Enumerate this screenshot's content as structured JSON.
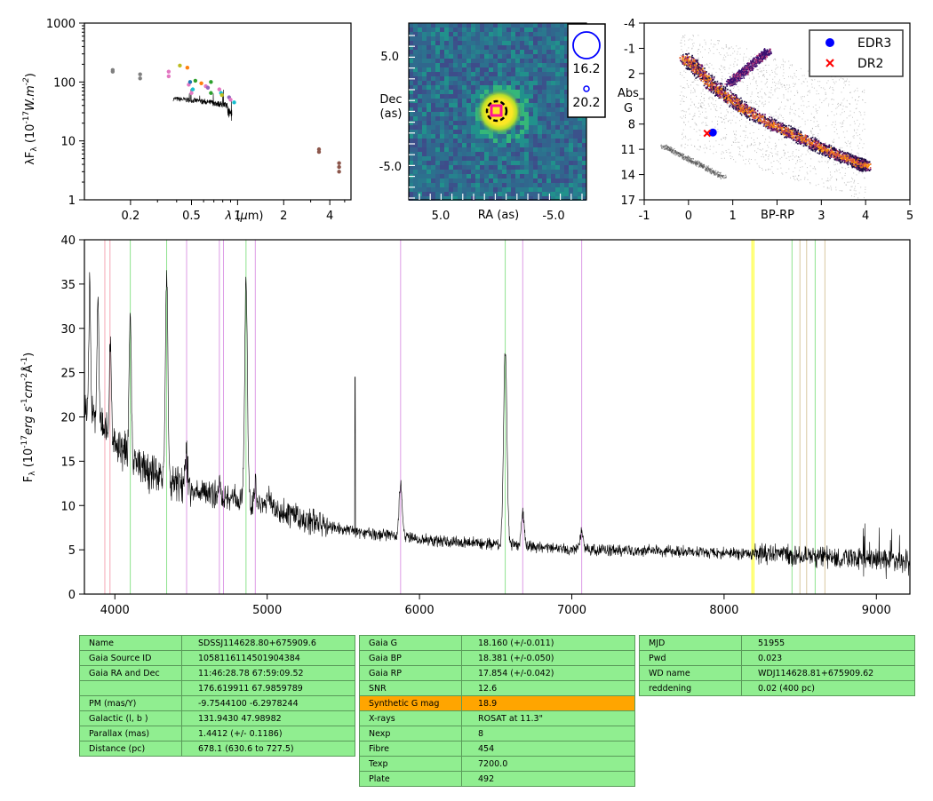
{
  "colors": {
    "spectrum": "#000000",
    "table_bg": "#90ee90",
    "highlight": "#ffa500",
    "edr3": "#0000ff",
    "dr2": "#ff0000"
  },
  "chart_data": [
    {
      "type": "scatter",
      "id": "sed",
      "ylabel": "λF_λ (10^-17 W.m^-2)",
      "xlabel": "λ (μm)",
      "xscale": "log",
      "yscale": "log",
      "xlim": [
        0.1,
        5.5
      ],
      "ylim": [
        1,
        1000
      ],
      "xticks": [
        "0.2",
        "0.5",
        "1",
        "2",
        "4"
      ],
      "yticks": [
        "1",
        "10",
        "100",
        "1000"
      ],
      "points": [
        {
          "x": 0.153,
          "y": 160,
          "c": "#7f7f7f"
        },
        {
          "x": 0.153,
          "y": 150,
          "c": "#7f7f7f"
        },
        {
          "x": 0.231,
          "y": 135,
          "c": "#7f7f7f"
        },
        {
          "x": 0.231,
          "y": 115,
          "c": "#7f7f7f"
        },
        {
          "x": 0.355,
          "y": 150,
          "c": "#e377c2"
        },
        {
          "x": 0.355,
          "y": 125,
          "c": "#e377c2"
        },
        {
          "x": 0.42,
          "y": 190,
          "c": "#bcbd22"
        },
        {
          "x": 0.47,
          "y": 175,
          "c": "#ff7f0e"
        },
        {
          "x": 0.48,
          "y": 90,
          "c": "#e377c2"
        },
        {
          "x": 0.49,
          "y": 100,
          "c": "#1f77b4"
        },
        {
          "x": 0.5,
          "y": 65,
          "c": "#e377c2"
        },
        {
          "x": 0.51,
          "y": 75,
          "c": "#17becf"
        },
        {
          "x": 0.53,
          "y": 105,
          "c": "#2ca02c"
        },
        {
          "x": 0.58,
          "y": 95,
          "c": "#ff7f0e"
        },
        {
          "x": 0.62,
          "y": 85,
          "c": "#e377c2"
        },
        {
          "x": 0.64,
          "y": 80,
          "c": "#9467bd"
        },
        {
          "x": 0.67,
          "y": 65,
          "c": "#2ca02c"
        },
        {
          "x": 0.67,
          "y": 100,
          "c": "#2ca02c"
        },
        {
          "x": 0.76,
          "y": 75,
          "c": "#e377c2"
        },
        {
          "x": 0.78,
          "y": 65,
          "c": "#17becf"
        },
        {
          "x": 0.79,
          "y": 60,
          "c": "#bcbd22"
        },
        {
          "x": 0.88,
          "y": 55,
          "c": "#9467bd"
        },
        {
          "x": 0.9,
          "y": 50,
          "c": "#e377c2"
        },
        {
          "x": 0.95,
          "y": 45,
          "c": "#17becf"
        },
        {
          "x": 3.4,
          "y": 7.2,
          "c": "#8c564b"
        },
        {
          "x": 3.4,
          "y": 6.5,
          "c": "#8c564b"
        },
        {
          "x": 4.6,
          "y": 4.2,
          "c": "#8c564b"
        },
        {
          "x": 4.6,
          "y": 3.6,
          "c": "#8c564b"
        },
        {
          "x": 4.6,
          "y": 3.0,
          "c": "#8c564b"
        }
      ]
    },
    {
      "type": "heatmap",
      "id": "image",
      "xlabel": "RA (as)",
      "ylabel": "Dec (as)",
      "xticks": [
        "5.0",
        "-5.0"
      ],
      "yticks": [
        "5.0",
        "-5.0"
      ],
      "legend": [
        {
          "label": "16.2"
        },
        {
          "label": "20.2"
        }
      ]
    },
    {
      "type": "scatter",
      "id": "hrd",
      "xlabel": "BP-RP",
      "ylabel": "Abs G",
      "xlim": [
        -1,
        5
      ],
      "ylim": [
        17,
        -4
      ],
      "xticks": [
        "-1",
        "0",
        "1",
        "2",
        "3",
        "4",
        "5"
      ],
      "yticks": [
        "-4",
        "-1",
        "2",
        "5",
        "8",
        "11",
        "14",
        "17"
      ],
      "legend_position": "top-right",
      "series": [
        {
          "name": "EDR3",
          "marker": "circle",
          "color": "#0000ff",
          "points": [
            {
              "x": 0.55,
              "y": 9.0
            }
          ]
        },
        {
          "name": "DR2",
          "marker": "x",
          "color": "#ff0000",
          "points": [
            {
              "x": 0.42,
              "y": 9.1
            }
          ]
        }
      ]
    },
    {
      "type": "line",
      "id": "spectrum",
      "ylabel": "F_λ (10^-17 erg s^-1 cm^-2 Å^-1)",
      "xlim": [
        3800,
        9220
      ],
      "ylim": [
        0,
        40
      ],
      "xticks": [
        "4000",
        "5000",
        "6000",
        "7000",
        "8000",
        "9000"
      ],
      "yticks": [
        "0",
        "5",
        "10",
        "15",
        "20",
        "25",
        "30",
        "35",
        "40"
      ],
      "continuum": [
        [
          3800,
          21
        ],
        [
          3900,
          20
        ],
        [
          4000,
          17
        ],
        [
          4200,
          14
        ],
        [
          4400,
          12.5
        ],
        [
          4600,
          11.5
        ],
        [
          4800,
          10.8
        ],
        [
          5000,
          9.8
        ],
        [
          5200,
          8.6
        ],
        [
          5400,
          7.6
        ],
        [
          5600,
          7
        ],
        [
          5800,
          6.6
        ],
        [
          6000,
          6.2
        ],
        [
          6200,
          5.9
        ],
        [
          6400,
          5.7
        ],
        [
          6600,
          5.6
        ],
        [
          6800,
          5.3
        ],
        [
          7000,
          5.1
        ],
        [
          7200,
          5.0
        ],
        [
          7400,
          4.9
        ],
        [
          7600,
          4.85
        ],
        [
          7800,
          4.8
        ],
        [
          8000,
          4.7
        ],
        [
          8200,
          4.5
        ],
        [
          8400,
          4.5
        ],
        [
          8600,
          4.3
        ],
        [
          8800,
          4.1
        ],
        [
          9000,
          3.9
        ],
        [
          9220,
          3.8
        ]
      ],
      "emission_lines": [
        {
          "center": 3835,
          "peak": 14,
          "sigma": 6
        },
        {
          "center": 3889,
          "peak": 12,
          "sigma": 6
        },
        {
          "center": 3970,
          "peak": 10,
          "sigma": 6
        },
        {
          "center": 4101,
          "peak": 17,
          "sigma": 7
        },
        {
          "center": 4340,
          "peak": 23,
          "sigma": 8
        },
        {
          "center": 4471,
          "peak": 3.5,
          "sigma": 8
        },
        {
          "center": 4686,
          "peak": 2,
          "sigma": 8
        },
        {
          "center": 4861,
          "peak": 25,
          "sigma": 9
        },
        {
          "center": 4922,
          "peak": 2,
          "sigma": 7
        },
        {
          "center": 5015,
          "peak": 2,
          "sigma": 8
        },
        {
          "center": 5876,
          "peak": 6,
          "sigma": 10
        },
        {
          "center": 6563,
          "peak": 22,
          "sigma": 11
        },
        {
          "center": 6678,
          "peak": 3.5,
          "sigma": 9
        },
        {
          "center": 7065,
          "peak": 2,
          "sigma": 10
        }
      ],
      "spikes": [
        {
          "x": 5577,
          "y": 24.5
        }
      ],
      "vlines": [
        {
          "x": 3934,
          "color": "#f4a6b4"
        },
        {
          "x": 3968,
          "color": "#f4a6b4"
        },
        {
          "x": 4101,
          "color": "#8fe38f"
        },
        {
          "x": 4340,
          "color": "#8fe38f"
        },
        {
          "x": 4471,
          "color": "#dd9ce6"
        },
        {
          "x": 4686,
          "color": "#dd9ce6"
        },
        {
          "x": 4713,
          "color": "#dd9ce6"
        },
        {
          "x": 4861,
          "color": "#8fe38f"
        },
        {
          "x": 4922,
          "color": "#dd9ce6"
        },
        {
          "x": 5876,
          "color": "#dd9ce6"
        },
        {
          "x": 6563,
          "color": "#8fe38f"
        },
        {
          "x": 6678,
          "color": "#dd9ce6"
        },
        {
          "x": 7065,
          "color": "#dd9ce6"
        },
        {
          "x": 8183,
          "color": "#ffff00"
        },
        {
          "x": 8195,
          "color": "#ffff00"
        },
        {
          "x": 8446,
          "color": "#8fe38f"
        },
        {
          "x": 8498,
          "color": "#d8c8a0"
        },
        {
          "x": 8542,
          "color": "#d8c8a0"
        },
        {
          "x": 8598,
          "color": "#8fe38f"
        },
        {
          "x": 8662,
          "color": "#d8c8a0"
        }
      ]
    }
  ],
  "table1": [
    [
      "Name",
      "SDSSJ114628.80+675909.6"
    ],
    [
      "Gaia Source ID",
      "1058116114501904384"
    ],
    [
      "Gaia RA and Dec",
      "11:46:28.78    67:59:09.52"
    ],
    [
      "",
      "176.619911    67.9859789"
    ],
    [
      "PM (mas/Y)",
      "-9.7544100    -6.2978244"
    ],
    [
      "Galactic (l, b )",
      "131.9430    47.98982"
    ],
    [
      "Parallax (mas)",
      "1.4412 (+/- 0.1186)"
    ],
    [
      "Distance (pc)",
      "678.1 (630.6 to 727.5)"
    ]
  ],
  "table2": [
    [
      "Gaia G",
      "18.160 (+/-0.011)"
    ],
    [
      "Gaia BP",
      "18.381 (+/-0.050)"
    ],
    [
      "Gaia RP",
      "17.854 (+/-0.042)"
    ],
    [
      "SNR",
      "12.6"
    ],
    [
      "Synthetic G mag",
      "18.9"
    ],
    [
      "X-rays",
      "ROSAT at 11.3\""
    ],
    [
      "Nexp",
      "8"
    ],
    [
      "Fibre",
      "454"
    ],
    [
      "Texp",
      "7200.0"
    ],
    [
      "Plate",
      "492"
    ]
  ],
  "table3": [
    [
      "MJD",
      "51955"
    ],
    [
      "Pwd",
      "0.023"
    ],
    [
      "WD name",
      "WDJ114628.81+675909.62"
    ],
    [
      "reddening",
      "0.02 (400 pc)"
    ]
  ]
}
